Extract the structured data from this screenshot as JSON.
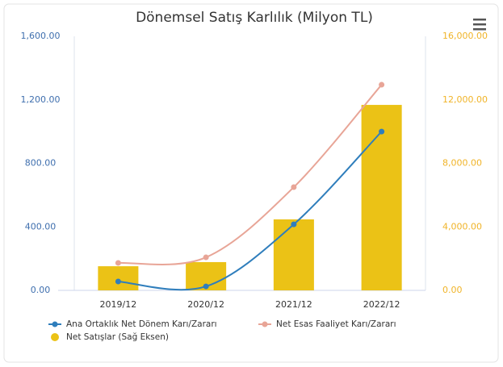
{
  "chart_data": {
    "type": "bar-line",
    "title": "Dönemsel Satış Karlılık (Milyon TL)",
    "categories": [
      "2019/12",
      "2020/12",
      "2021/12",
      "2022/12"
    ],
    "series": [
      {
        "name": "Ana Ortaklık Net Dönem Karı/Zararı",
        "type": "line",
        "color": "#2f7ebc",
        "values": [
          56,
          25,
          416,
          1000
        ]
      },
      {
        "name": "Net Esas Faaliyet Karı/Zararı",
        "type": "line",
        "color": "#e8a597",
        "values": [
          173,
          208,
          650,
          1295
        ]
      },
      {
        "name": "Net Satışlar (Sağ Eksen)",
        "type": "bar",
        "axis": "y2",
        "color": "#ebc216",
        "values": [
          1520,
          1780,
          4470,
          11680
        ]
      }
    ],
    "ylim": [
      0,
      1600
    ],
    "yticks": [
      {
        "value": 0,
        "label": "0.00"
      },
      {
        "value": 400,
        "label": "400.00"
      },
      {
        "value": 800,
        "label": "800.00"
      },
      {
        "value": 1200,
        "label": "1,200.00"
      },
      {
        "value": 1600,
        "label": "1,600.00"
      }
    ],
    "y2lim": [
      0,
      16000
    ],
    "y2ticks": [
      {
        "value": 0,
        "label": "0.00"
      },
      {
        "value": 4000,
        "label": "4,000.00"
      },
      {
        "value": 8000,
        "label": "8,000.00"
      },
      {
        "value": 12000,
        "label": "12,000.00"
      },
      {
        "value": 16000,
        "label": "16,000.00"
      }
    ],
    "grid": false,
    "legend": "bottom"
  }
}
